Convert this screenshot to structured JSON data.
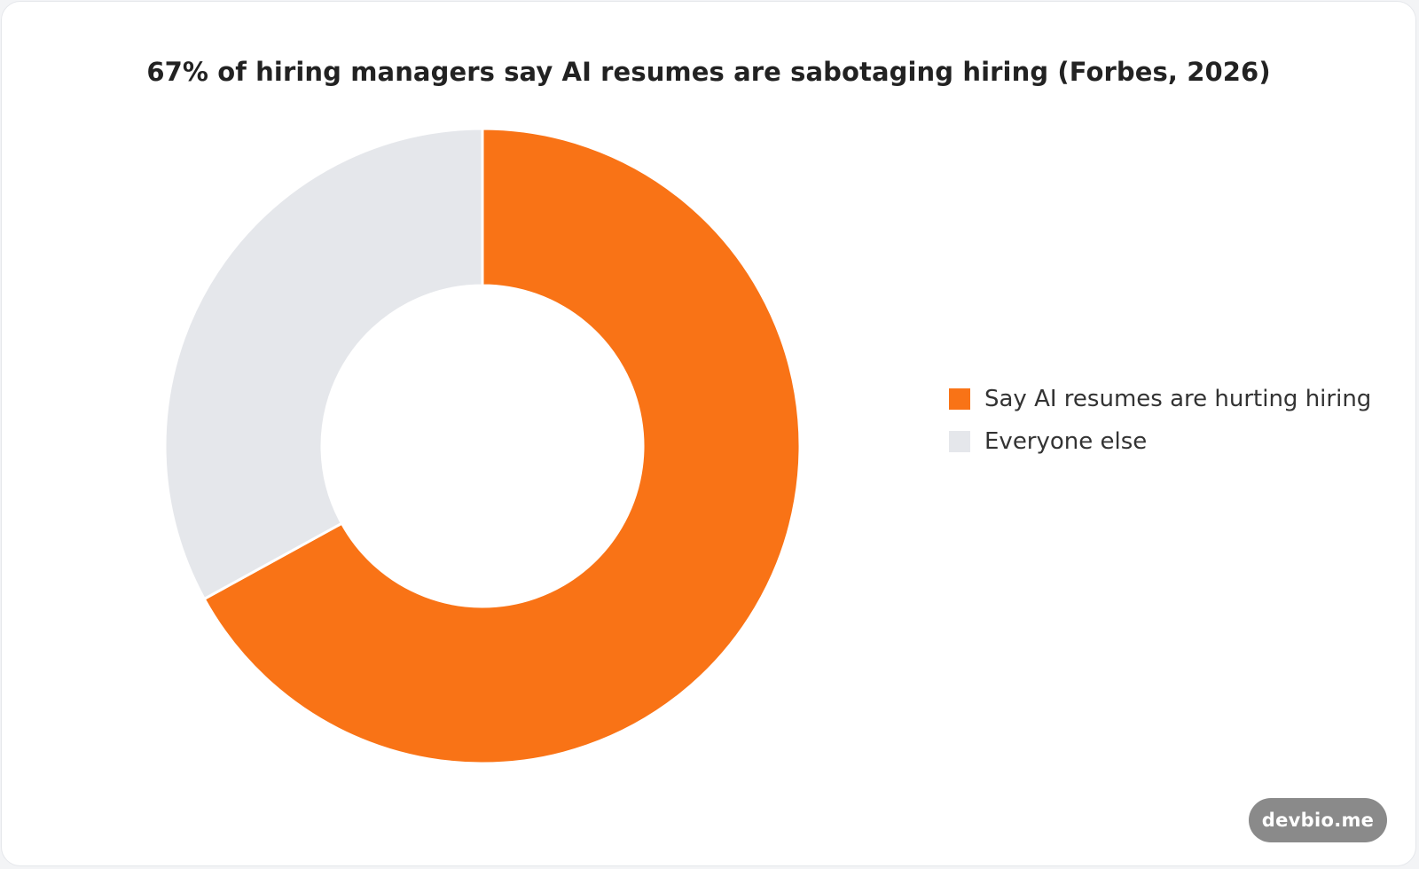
{
  "chart_data": {
    "type": "pie",
    "variant": "donut",
    "title": "67% of hiring managers say AI resumes are sabotaging hiring (Forbes, 2026)",
    "slices": [
      {
        "label": "Say AI resumes are hurting hiring",
        "value": 67,
        "color": "#f97316"
      },
      {
        "label": "Everyone else",
        "value": 33,
        "color": "#e5e7eb"
      }
    ],
    "legend_position": "right"
  },
  "watermark": {
    "label": "devbio.me"
  },
  "colors": {
    "background": "#ffffff",
    "accent": "#f97316",
    "muted": "#e5e7eb"
  }
}
